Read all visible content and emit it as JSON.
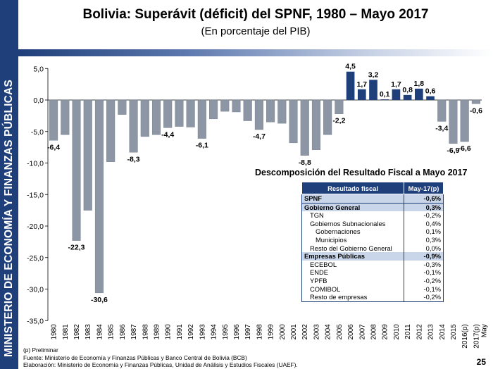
{
  "sidebar": {
    "text": "MINISTERIO DE ECONOMÍA Y FINANZAS PÚBLICAS"
  },
  "page_number": "25",
  "footnotes": [
    "(p) Preliminar",
    "Fuente: Ministerio de Economía y Finanzas Públicas y Banco Central de Bolivia (BCB)",
    "Elaboración: Ministerio de Economía y Finanzas Públicas, Unidad de Análisis y Estudios Fiscales (UAEF)."
  ],
  "colors": {
    "bar_negative": "#8c96a4",
    "bar_positive": "#1f3f7a",
    "header": "#1f3f7a",
    "highlight": "#c9d6ea"
  },
  "decomposition": {
    "title": "Descomposición del Resultado Fiscal a Mayo 2017",
    "headers": [
      "Resultado fiscal",
      "May-17(p)"
    ],
    "rows": [
      {
        "label": "SPNF",
        "value": "-0,6%",
        "level": 0,
        "highlight": true
      },
      {
        "label": "Gobierno General",
        "value": "0,3%",
        "level": 0,
        "highlight": true
      },
      {
        "label": "TGN",
        "value": "-0,2%",
        "level": 1,
        "highlight": false
      },
      {
        "label": "Gobiernos Subnacionales",
        "value": "0,4%",
        "level": 1,
        "highlight": false
      },
      {
        "label": "Gobernaciones",
        "value": "0,1%",
        "level": 2,
        "highlight": false
      },
      {
        "label": "Municipios",
        "value": "0,3%",
        "level": 2,
        "highlight": false
      },
      {
        "label": "Resto del Gobierno General",
        "value": "0,0%",
        "level": 1,
        "highlight": false
      },
      {
        "label": "Empresas Públicas",
        "value": "-0,9%",
        "level": 0,
        "highlight": true
      },
      {
        "label": "ECEBOL",
        "value": "-0,3%",
        "level": 1,
        "highlight": false
      },
      {
        "label": "ENDE",
        "value": "-0,1%",
        "level": 1,
        "highlight": false
      },
      {
        "label": "YPFB",
        "value": "-0,2%",
        "level": 1,
        "highlight": false
      },
      {
        "label": "COMIBOL",
        "value": "-0,1%",
        "level": 1,
        "highlight": false
      },
      {
        "label": "Resto de empresas",
        "value": "-0,2%",
        "level": 1,
        "highlight": false
      }
    ]
  },
  "chart_data": {
    "type": "bar",
    "title": "Bolivia: Superávit (déficit) del SPNF, 1980 – Mayo 2017",
    "subtitle": "(En porcentaje del PIB)",
    "xlabel": "",
    "ylabel": "",
    "ylim": [
      -35,
      5
    ],
    "yticks": [
      "5,0",
      "0,0",
      "-5,0",
      "-10,0",
      "-15,0",
      "-20,0",
      "-25,0",
      "-30,0",
      "-35,0"
    ],
    "ytick_values": [
      5,
      0,
      -5,
      -10,
      -15,
      -20,
      -25,
      -30,
      -35
    ],
    "grid": false,
    "categories": [
      "1980",
      "1981",
      "1982",
      "1983",
      "1984",
      "1985",
      "1986",
      "1987",
      "1988",
      "1989",
      "1990",
      "1991",
      "1992",
      "1993",
      "1994",
      "1995",
      "1996",
      "1997",
      "1998",
      "1999",
      "2000",
      "2001",
      "2002",
      "2003",
      "2004",
      "2005",
      "2006",
      "2007",
      "2008",
      "2009",
      "2010",
      "2011",
      "2012",
      "2013",
      "2014",
      "2015",
      "2016(p)",
      "2017(p) May"
    ],
    "values": [
      -6.4,
      -5.5,
      -22.3,
      -17.5,
      -30.6,
      -9.8,
      -2.3,
      -8.3,
      -5.8,
      -5.5,
      -4.4,
      -4.2,
      -4.3,
      -6.1,
      -3.0,
      -1.8,
      -1.9,
      -3.3,
      -4.7,
      -3.5,
      -3.7,
      -6.8,
      -8.8,
      -7.9,
      -5.5,
      -2.2,
      4.5,
      1.7,
      3.2,
      0.1,
      1.7,
      0.8,
      1.8,
      0.6,
      -3.4,
      -6.9,
      -6.6,
      -0.6
    ],
    "data_labels": [
      {
        "index": 0,
        "text": "-6,4"
      },
      {
        "index": 2,
        "text": "-22,3"
      },
      {
        "index": 4,
        "text": "-30,6"
      },
      {
        "index": 7,
        "text": "-8,3"
      },
      {
        "index": 10,
        "text": "-4,4"
      },
      {
        "index": 13,
        "text": "-6,1"
      },
      {
        "index": 18,
        "text": "-4,7"
      },
      {
        "index": 22,
        "text": "-8,8"
      },
      {
        "index": 25,
        "text": "-2,2"
      },
      {
        "index": 26,
        "text": "4,5"
      },
      {
        "index": 27,
        "text": "1,7"
      },
      {
        "index": 28,
        "text": "3,2"
      },
      {
        "index": 29,
        "text": "0,1"
      },
      {
        "index": 30,
        "text": "1,7"
      },
      {
        "index": 31,
        "text": "0,8"
      },
      {
        "index": 32,
        "text": "1,8"
      },
      {
        "index": 33,
        "text": "0,6"
      },
      {
        "index": 34,
        "text": "-3,4"
      },
      {
        "index": 35,
        "text": "-6,9"
      },
      {
        "index": 36,
        "text": "-6,6"
      },
      {
        "index": 37,
        "text": "-0,6"
      }
    ]
  }
}
